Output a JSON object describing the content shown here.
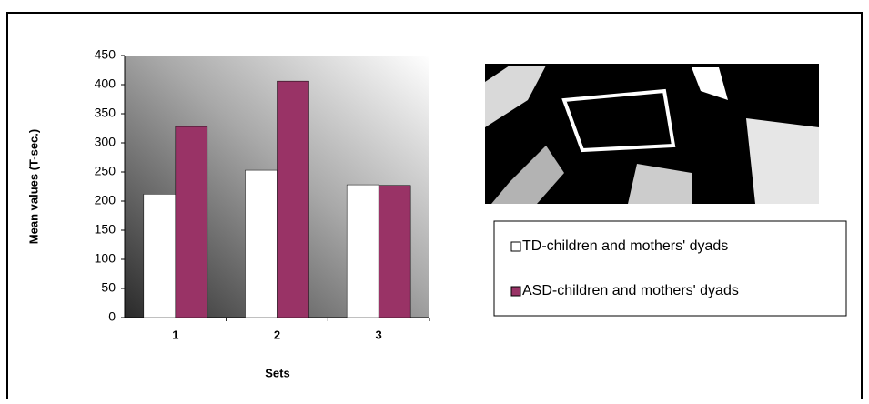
{
  "chart_data": {
    "type": "bar",
    "x_label": "Sets",
    "y_label": "Mean values (T-sec.)",
    "categories": [
      "1",
      "2",
      "3"
    ],
    "series": [
      {
        "name": "TD-children and mothers' dyads",
        "color": "#ffffff",
        "values": [
          212,
          253,
          228
        ]
      },
      {
        "name": "ASD-children and mothers' dyads",
        "color": "#993366",
        "values": [
          328,
          406,
          227
        ]
      }
    ],
    "ylim": [
      0,
      450
    ],
    "yticks": [
      0,
      50,
      100,
      150,
      200,
      250,
      300,
      350,
      400,
      450
    ]
  }
}
